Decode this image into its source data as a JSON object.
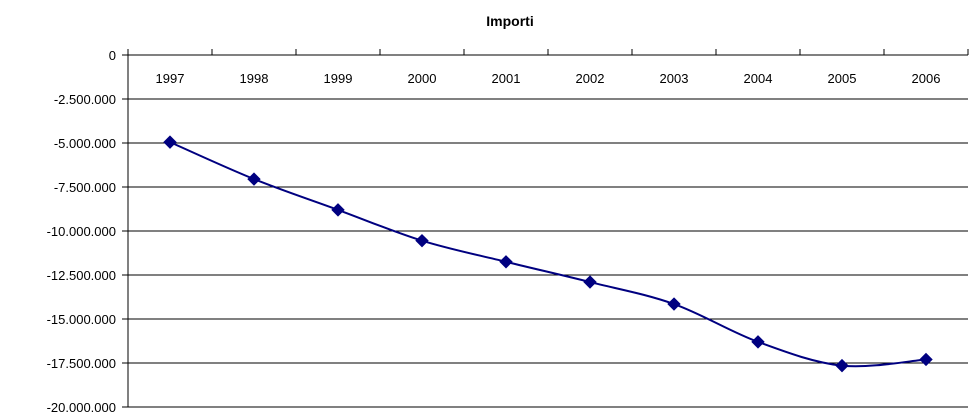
{
  "chart_data": {
    "type": "line",
    "title": "Importi",
    "categories": [
      "1997",
      "1998",
      "1999",
      "2000",
      "2001",
      "2002",
      "2003",
      "2004",
      "2005",
      "2006"
    ],
    "series": [
      {
        "values": [
          -4950000,
          -7050000,
          -8800000,
          -10550000,
          -11750000,
          -12900000,
          -14150000,
          -16300000,
          -17650000,
          -17300000
        ]
      }
    ],
    "ylim": [
      -20000000,
      0
    ],
    "y_ticks": [
      "0",
      "-2.500.000",
      "-5.000.000",
      "-7.500.000",
      "-10.000.000",
      "-12.500.000",
      "-15.000.000",
      "-17.500.000",
      "-20.000.000"
    ],
    "y_tick_values": [
      0,
      -2500000,
      -5000000,
      -7500000,
      -10000000,
      -12500000,
      -15000000,
      -17500000,
      -20000000
    ],
    "x_axis_position": "top",
    "grid": true,
    "line_color": "#000080",
    "marker": "diamond",
    "smooth": true
  }
}
